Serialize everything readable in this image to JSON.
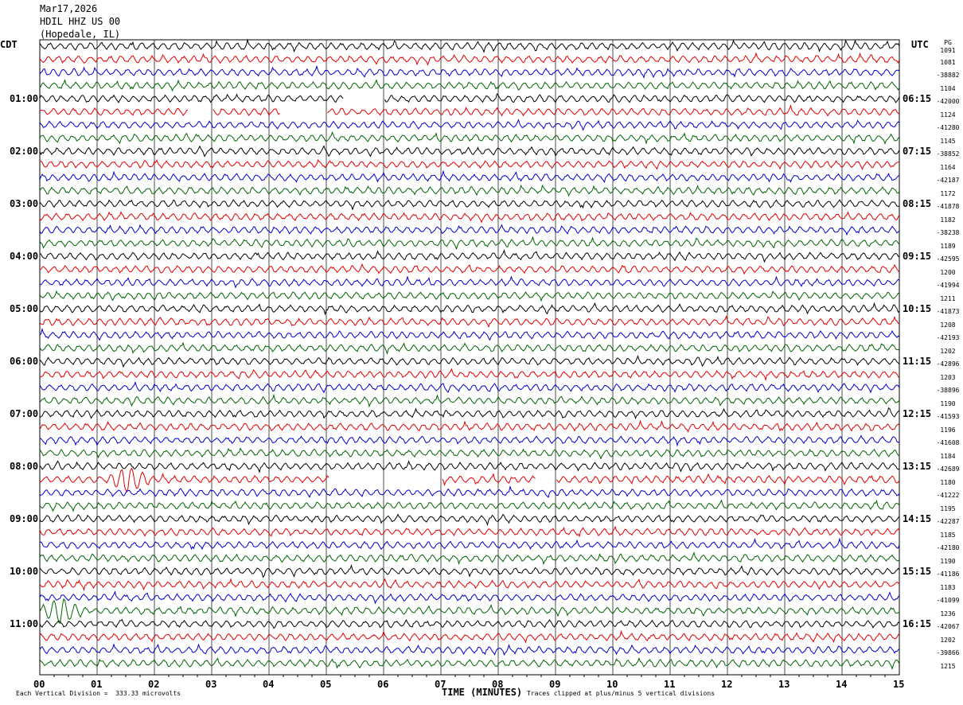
{
  "header": {
    "date": "Mar17,2026",
    "station": "HDIL HHZ US 00",
    "location": "(Hopedale, IL)"
  },
  "left_timezone": "CDT",
  "right_timezone": "UTC",
  "right_top": "PG",
  "chart_data": {
    "type": "line",
    "xlabel": "TIME (MINUTES)",
    "xlim": [
      0,
      15
    ],
    "x_ticks": [
      "00",
      "01",
      "02",
      "03",
      "04",
      "05",
      "06",
      "07",
      "08",
      "09",
      "10",
      "11",
      "12",
      "13",
      "14",
      "15"
    ],
    "trace_count": 48,
    "trace_colors": [
      "#000000",
      "#e00000",
      "#0000c8",
      "#006400"
    ],
    "left_hour_labels": [
      "01:00",
      "02:00",
      "03:00",
      "04:00",
      "05:00",
      "06:00",
      "07:00",
      "08:00",
      "09:00",
      "10:00",
      "11:00"
    ],
    "right_hour_labels": [
      "06:15",
      "07:15",
      "08:15",
      "09:15",
      "10:15",
      "11:15",
      "12:15",
      "13:15",
      "14:15",
      "15:15",
      "16:15"
    ],
    "right_values": [
      "1091",
      "1081",
      "-38882",
      "1104",
      "-42000",
      "1124",
      "-41280",
      "1145",
      "-38852",
      "1164",
      "-42187",
      "1172",
      "-41878",
      "1182",
      "-38238",
      "1189",
      "-42595",
      "1200",
      "-41994",
      "1211",
      "-41873",
      "1208",
      "-42193",
      "1202",
      "-42896",
      "1203",
      "-38896",
      "1190",
      "-41593",
      "1196",
      "-41608",
      "1184",
      "-42689",
      "1180",
      "-41222",
      "1195",
      "-42287",
      "1185",
      "-42180",
      "1190",
      "-41186",
      "1183",
      "-41099",
      "1236",
      "-42067",
      "1202",
      "-39866",
      "1215"
    ],
    "gaps": [
      {
        "trace": 4,
        "from": 5.3,
        "to": 6.0
      },
      {
        "trace": 5,
        "from": 2.6,
        "to": 3.0
      },
      {
        "trace": 5,
        "from": 4.2,
        "to": 5.0
      },
      {
        "trace": 33,
        "from": 5.05,
        "to": 6.0
      },
      {
        "trace": 33,
        "from": 6.0,
        "to": 7.0
      },
      {
        "trace": 33,
        "from": 8.65,
        "to": 9.0
      }
    ],
    "events": [
      {
        "trace": 33,
        "minute": 1.55,
        "amplitude": "high"
      },
      {
        "trace": 43,
        "minute": 0.35,
        "amplitude": "high"
      }
    ]
  },
  "footer": {
    "scale_text": "Each Vertical Division =  333.33 microvolts",
    "clip_text": "Traces clipped at plus/minus 5 vertical divisions"
  }
}
